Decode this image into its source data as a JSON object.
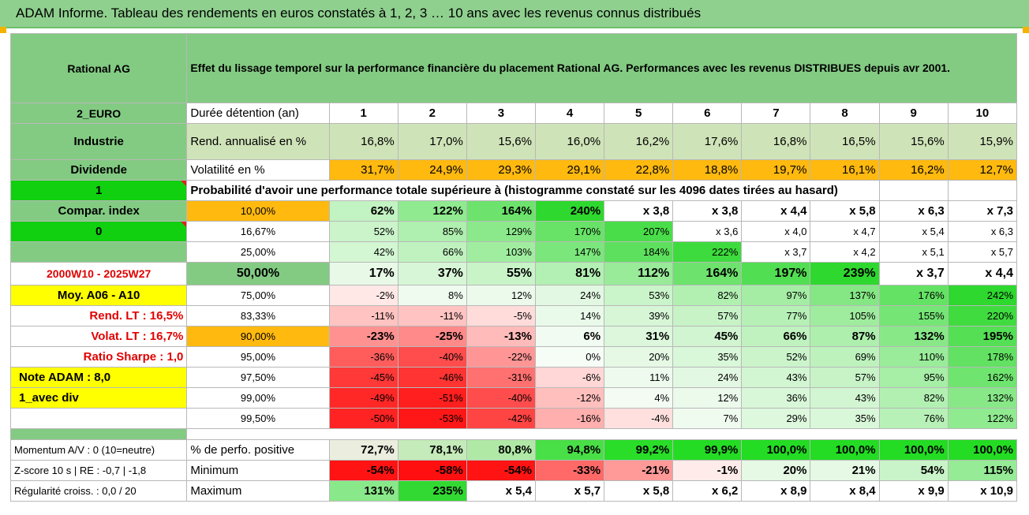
{
  "title": "ADAM Informe. Tableau des rendements en euros constatés à 1, 2, 3 … 10 ans avec les revenus connus distribués",
  "fund_name": "Rational AG",
  "description": "Effet du lissage temporel sur la performance financière du placement Rational AG. Performances avec les revenus DISTRIBUES depuis avr 2001.",
  "left_labels": {
    "currency": "2_EURO",
    "sector": "Industrie",
    "dividend": "Dividende",
    "one": "1",
    "compar_index": "Compar. index",
    "zero": "0",
    "period": "2000W10 - 2025W27",
    "moy": "Moy. A06 - A10",
    "rend_lt": "Rend. LT :   16,5%",
    "volat_lt": "Volat. LT :   16,7%",
    "sharpe": "Ratio Sharpe :   1,0",
    "note": "Note ADAM : 8,0",
    "avec_div": "1_avec div"
  },
  "header": {
    "duration_label": "Durée détention (an)",
    "years": [
      "1",
      "2",
      "3",
      "4",
      "5",
      "6",
      "7",
      "8",
      "9",
      "10"
    ],
    "rend_label": "Rend. annualisé en %",
    "rend": [
      "16,8%",
      "17,0%",
      "15,6%",
      "16,0%",
      "16,2%",
      "17,6%",
      "16,8%",
      "16,5%",
      "15,6%",
      "15,9%"
    ],
    "vol_label": "Volatilité en %",
    "vol": [
      "31,7%",
      "24,9%",
      "29,3%",
      "29,1%",
      "22,8%",
      "18,8%",
      "19,7%",
      "16,1%",
      "16,2%",
      "12,7%"
    ]
  },
  "probability_title": "Probabilité d'avoir une performance totale supérieure à (histogramme constaté sur les 4096 dates tirées au hasard)",
  "prob_rows": [
    {
      "label": "10,00%",
      "values": [
        "62%",
        "122%",
        "164%",
        "240%",
        "x 3,8",
        "x 3,8",
        "x 4,4",
        "x 5,8",
        "x 6,3",
        "x 7,3"
      ]
    },
    {
      "label": "16,67%",
      "values": [
        "52%",
        "85%",
        "129%",
        "170%",
        "207%",
        "x 3,6",
        "x 4,0",
        "x 4,7",
        "x 5,4",
        "x 6,3"
      ]
    },
    {
      "label": "25,00%",
      "values": [
        "42%",
        "66%",
        "103%",
        "147%",
        "184%",
        "222%",
        "x 3,7",
        "x 4,2",
        "x 5,1",
        "x 5,7"
      ]
    },
    {
      "label": "50,00%",
      "values": [
        "17%",
        "37%",
        "55%",
        "81%",
        "112%",
        "164%",
        "197%",
        "239%",
        "x 3,7",
        "x 4,4"
      ]
    },
    {
      "label": "75,00%",
      "values": [
        "-2%",
        "8%",
        "12%",
        "24%",
        "53%",
        "82%",
        "97%",
        "137%",
        "176%",
        "242%"
      ]
    },
    {
      "label": "83,33%",
      "values": [
        "-11%",
        "-11%",
        "-5%",
        "14%",
        "39%",
        "57%",
        "77%",
        "105%",
        "155%",
        "220%"
      ]
    },
    {
      "label": "90,00%",
      "values": [
        "-23%",
        "-25%",
        "-13%",
        "6%",
        "31%",
        "45%",
        "66%",
        "87%",
        "132%",
        "195%"
      ]
    },
    {
      "label": "95,00%",
      "values": [
        "-36%",
        "-40%",
        "-22%",
        "0%",
        "20%",
        "35%",
        "52%",
        "69%",
        "110%",
        "178%"
      ]
    },
    {
      "label": "97,50%",
      "values": [
        "-45%",
        "-46%",
        "-31%",
        "-6%",
        "11%",
        "24%",
        "43%",
        "57%",
        "95%",
        "162%"
      ]
    },
    {
      "label": "99,00%",
      "values": [
        "-49%",
        "-51%",
        "-40%",
        "-12%",
        "4%",
        "12%",
        "36%",
        "43%",
        "82%",
        "132%"
      ]
    },
    {
      "label": "99,50%",
      "values": [
        "-50%",
        "-53%",
        "-42%",
        "-16%",
        "-4%",
        "7%",
        "29%",
        "35%",
        "76%",
        "122%"
      ]
    }
  ],
  "bottom_rows": [
    {
      "left": "Momentum A/V : 0 (10=neutre)",
      "label": "% de perfo. positive",
      "values": [
        "72,7%",
        "78,1%",
        "80,8%",
        "94,8%",
        "99,2%",
        "99,9%",
        "100,0%",
        "100,0%",
        "100,0%",
        "100,0%"
      ]
    },
    {
      "left": "Z-score 10 s | RE : -0,7 | -1,8",
      "label": "Minimum",
      "values": [
        "-54%",
        "-58%",
        "-54%",
        "-33%",
        "-21%",
        "-1%",
        "20%",
        "21%",
        "54%",
        "115%"
      ]
    },
    {
      "left": "Régularité croiss. : 0,0 / 20",
      "label": "Maximum",
      "values": [
        "131%",
        "235%",
        "x 5,4",
        "x 5,7",
        "x 5,8",
        "x 6,2",
        "x 8,9",
        "x 8,4",
        "x 9,9",
        "x 10,9"
      ]
    }
  ],
  "colors": {
    "header_green": "#83cb83",
    "bright_green": "#10d010",
    "yellow": "#ffff00",
    "orange": "#ffb90f",
    "red_text": "#e00000"
  }
}
